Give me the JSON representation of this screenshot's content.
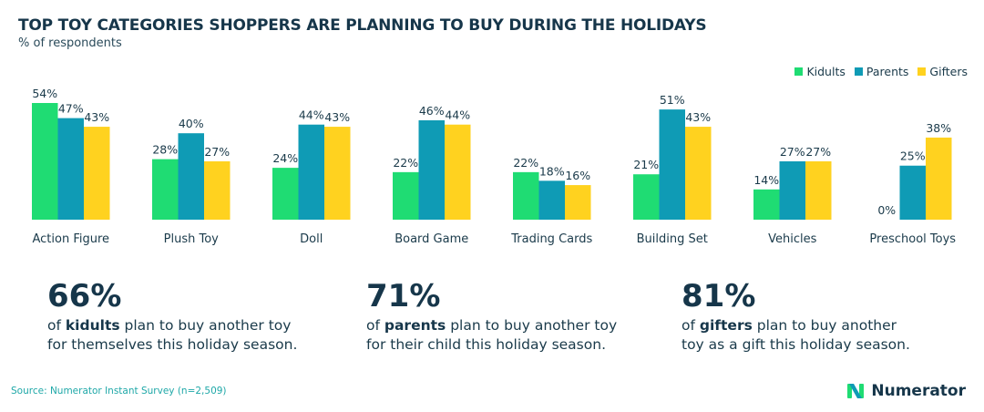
{
  "title": "TOP TOY CATEGORIES SHOPPERS ARE PLANNING TO BUY DURING THE HOLIDAYS",
  "subtitle": "% of respondents",
  "colors": {
    "kidults": "#1fdc73",
    "parents": "#0f9bb5",
    "gifters": "#ffd21f"
  },
  "chart_data": {
    "type": "bar",
    "title": "TOP TOY CATEGORIES SHOPPERS ARE PLANNING TO BUY DURING THE HOLIDAYS",
    "ylabel": "% of respondents",
    "xlabel": "",
    "ylim": [
      0,
      60
    ],
    "legend_position": "top-right",
    "categories": [
      "Action Figure",
      "Plush Toy",
      "Doll",
      "Board Game",
      "Trading Cards",
      "Building Set",
      "Vehicles",
      "Preschool Toys"
    ],
    "series": [
      {
        "name": "Kidults",
        "values": [
          54,
          28,
          24,
          22,
          22,
          21,
          14,
          0
        ]
      },
      {
        "name": "Parents",
        "values": [
          47,
          40,
          44,
          46,
          18,
          51,
          27,
          25
        ]
      },
      {
        "name": "Gifters",
        "values": [
          43,
          27,
          43,
          44,
          16,
          43,
          27,
          38
        ]
      }
    ]
  },
  "stats": [
    {
      "value": "66%",
      "pre": "of ",
      "bold": "kidults",
      "post": " plan to buy another toy",
      "line2": "for themselves this holiday season."
    },
    {
      "value": "71%",
      "pre": "of ",
      "bold": "parents",
      "post": " plan to buy another toy",
      "line2": "for their child this holiday season."
    },
    {
      "value": "81%",
      "pre": "of ",
      "bold": "gifters",
      "post": " plan to buy another",
      "line2": "toy as a gift this holiday season."
    }
  ],
  "source": "Source: Numerator Instant Survey (n=2,509)",
  "brand": {
    "name": "Numerator",
    "icon": "numerator-logo-icon"
  }
}
